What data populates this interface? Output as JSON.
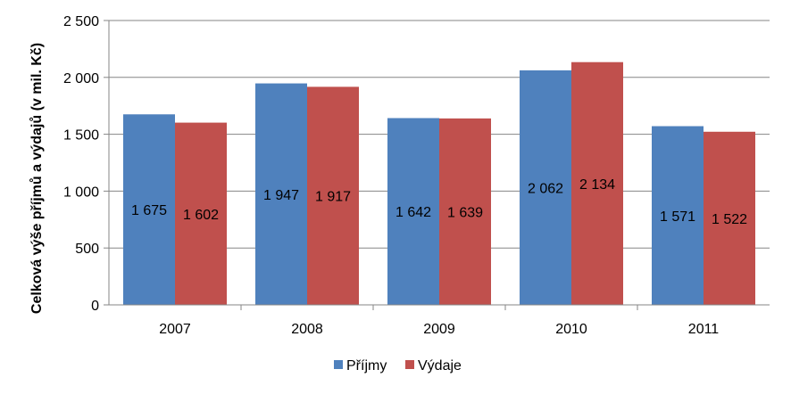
{
  "chart_data": {
    "type": "bar",
    "title": "",
    "xlabel": "",
    "ylabel": "Celková výše příjmů a výdajů (v mil. Kč)",
    "categories": [
      "2007",
      "2008",
      "2009",
      "2010",
      "2011"
    ],
    "series": [
      {
        "name": "Příjmy",
        "color": "#4F81BD",
        "values": [
          1675,
          1947,
          1642,
          2062,
          1571
        ],
        "labels": [
          "1 675",
          "1 947",
          "1 642",
          "2 062",
          "1 571"
        ]
      },
      {
        "name": "Výdaje",
        "color": "#C0504D",
        "values": [
          1602,
          1917,
          1639,
          2134,
          1522
        ],
        "labels": [
          "1 602",
          "1 917",
          "1 639",
          "2 134",
          "1 522"
        ]
      }
    ],
    "ylim": [
      0,
      2500
    ],
    "yticks": [
      0,
      500,
      1000,
      1500,
      2000,
      2500
    ],
    "ytick_labels": [
      "0",
      "500",
      "1 000",
      "1 500",
      "2 000",
      "2 500"
    ],
    "grid": true,
    "legend_position": "bottom"
  }
}
